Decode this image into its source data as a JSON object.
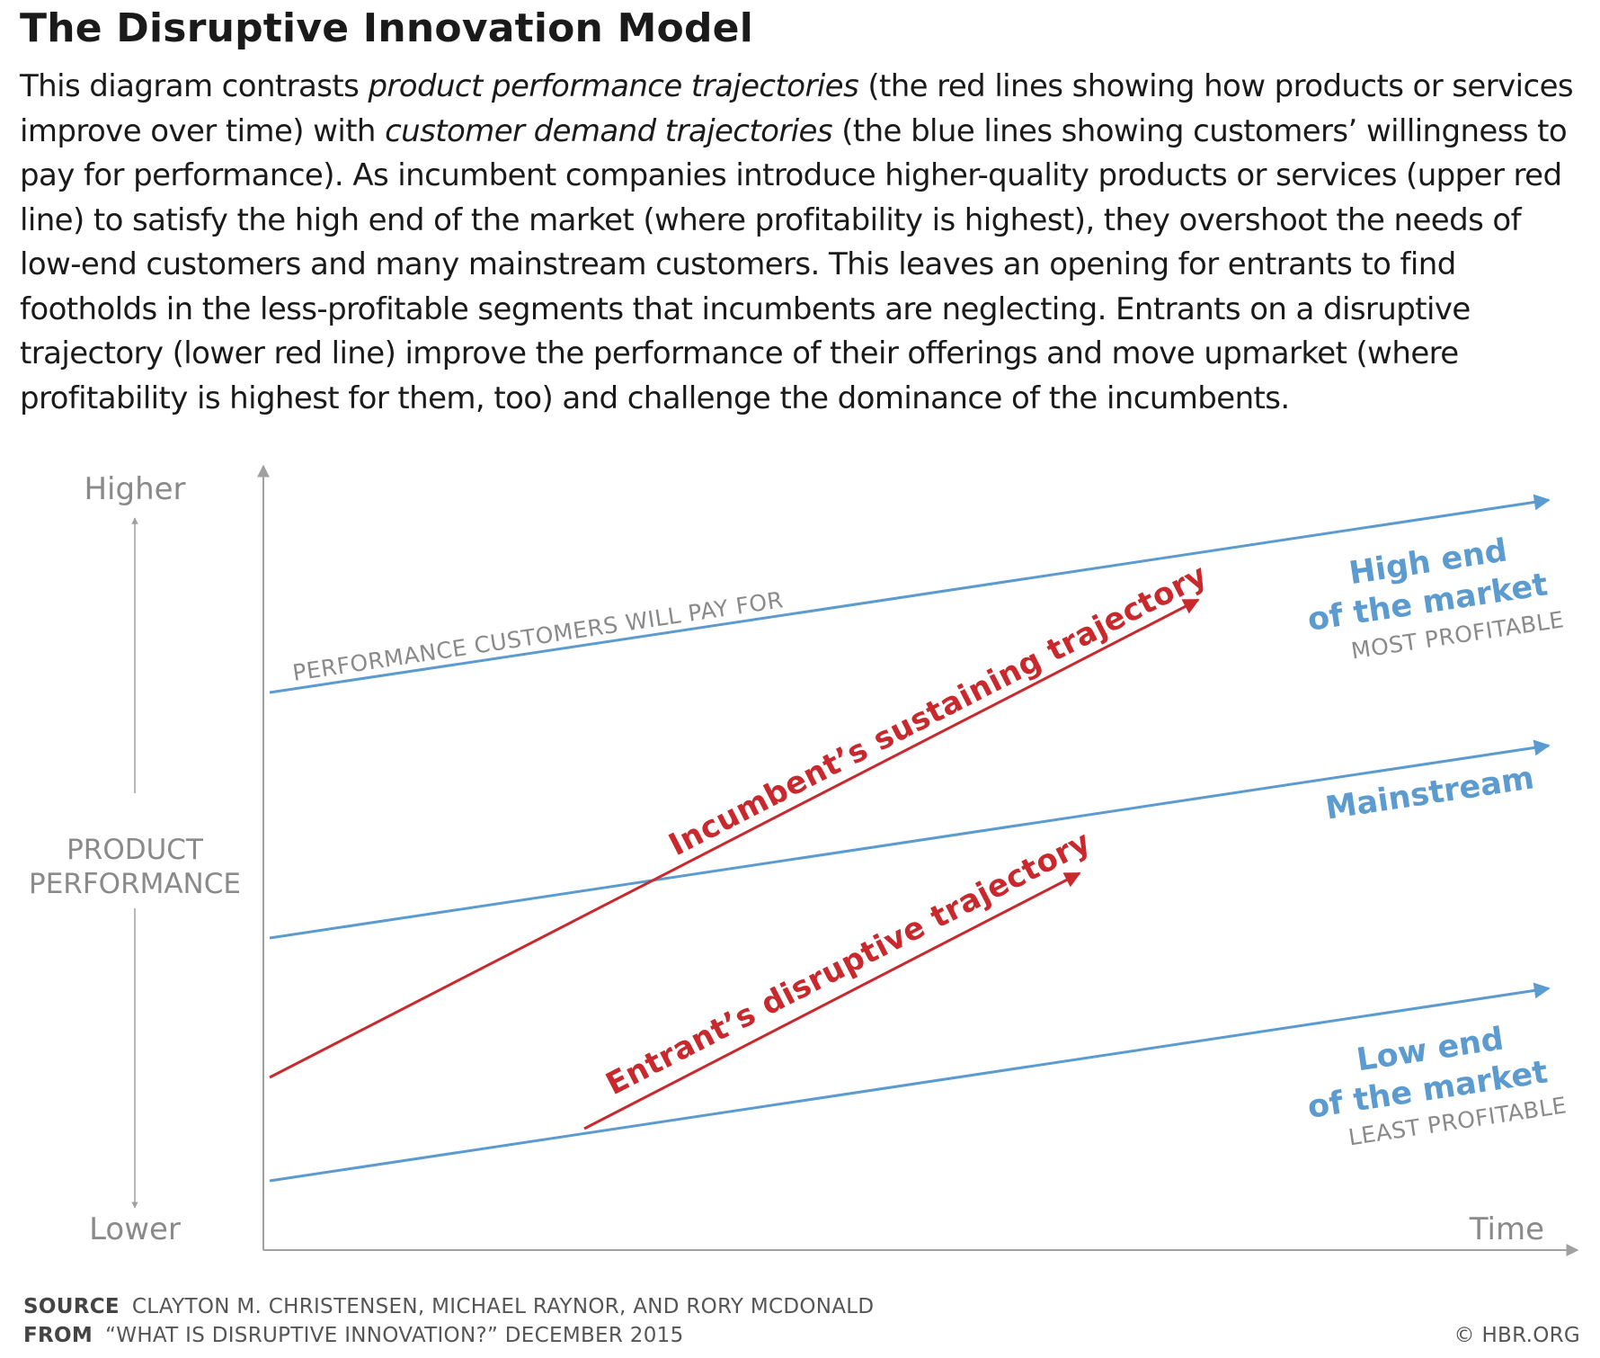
{
  "title": "The Disruptive Innovation Model",
  "description": {
    "part1": "This diagram contrasts ",
    "em1": "product performance trajectories",
    "part2": " (the red lines showing how products or services improve over time) with ",
    "em2": "customer demand trajectories",
    "part3": " (the blue lines showing customers’ willingness to pay for performance). As incumbent companies introduce higher-quality products or services (upper red line) to satisfy the high end of the market (where profitability is highest), they overshoot the needs of low-end customers and many mainstream customers. This leaves an opening for entrants to find footholds in the less-profitable segments that incumbents are neglecting. Entrants on a disruptive trajectory (lower red line) improve the performance of their offerings and move upmarket (where profitability is highest for them, too) and challenge the dominance of the incumbents."
  },
  "diagram": {
    "y_axis": {
      "higher": "Higher",
      "lower": "Lower",
      "label_line1": "PRODUCT",
      "label_line2": "PERFORMANCE"
    },
    "x_axis": {
      "label": "Time"
    },
    "demand_lines": {
      "top_label": "PERFORMANCE CUSTOMERS WILL PAY FOR",
      "high_end_line1": "High end",
      "high_end_line2": "of the market",
      "high_end_sub": "MOST PROFITABLE",
      "mainstream": "Mainstream",
      "low_end_line1": "Low end",
      "low_end_line2": "of the market",
      "low_end_sub": "LEAST PROFITABLE"
    },
    "trajectories": {
      "incumbent": "Incumbent’s sustaining trajectory",
      "entrant": "Entrant’s disruptive trajectory"
    },
    "colors": {
      "blue": "#5b9bd0",
      "red": "#c9282d",
      "axis": "#a0a0a0",
      "gray_text": "#8a8a8a"
    }
  },
  "footer": {
    "source_label": "SOURCE",
    "source_text": "CLAYTON M. CHRISTENSEN, MICHAEL RAYNOR, AND RORY MCDONALD",
    "from_label": "FROM",
    "from_text": "“WHAT IS DISRUPTIVE INNOVATION?” DECEMBER 2015",
    "copyright": "© HBR.ORG"
  }
}
